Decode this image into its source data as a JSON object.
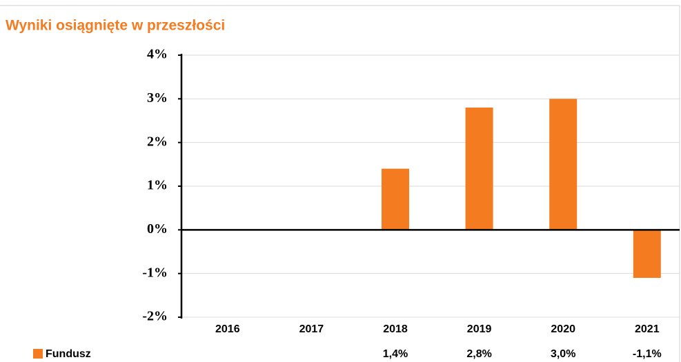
{
  "chart_data": {
    "type": "bar",
    "title": "Wyniki osiągnięte w przeszłości",
    "categories": [
      "2016",
      "2017",
      "2018",
      "2019",
      "2020",
      "2021"
    ],
    "series": [
      {
        "name": "Fundusz",
        "color": "#f47b20",
        "values": [
          null,
          null,
          1.4,
          2.8,
          3.0,
          -1.1
        ],
        "value_labels": [
          null,
          null,
          "1,4%",
          "2,8%",
          "3,0%",
          "-1,1%"
        ]
      }
    ],
    "ylim": [
      -2,
      4
    ],
    "yticks": [
      {
        "value": 4,
        "label": "4%"
      },
      {
        "value": 3,
        "label": "3%"
      },
      {
        "value": 2,
        "label": "2%"
      },
      {
        "value": 1,
        "label": "1%"
      },
      {
        "value": 0,
        "label": "0%"
      },
      {
        "value": -1,
        "label": "-1%"
      },
      {
        "value": -2,
        "label": "-2%"
      }
    ],
    "grid": true
  }
}
